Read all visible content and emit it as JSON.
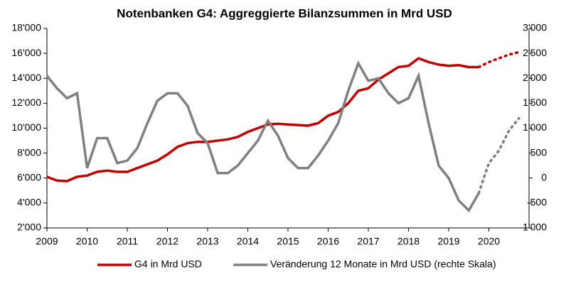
{
  "chart_data": {
    "type": "line",
    "title": "Notenbanken G4: Aggreggierte Bilanzsummen in Mrd USD",
    "x": [
      2009,
      2009.25,
      2009.5,
      2009.75,
      2010,
      2010.25,
      2010.5,
      2010.75,
      2011,
      2011.25,
      2011.5,
      2011.75,
      2012,
      2012.25,
      2012.5,
      2012.75,
      2013,
      2013.25,
      2013.5,
      2013.75,
      2014,
      2014.25,
      2014.5,
      2014.75,
      2015,
      2015.25,
      2015.5,
      2015.75,
      2016,
      2016.25,
      2016.5,
      2016.75,
      2017,
      2017.25,
      2017.5,
      2017.75,
      2018,
      2018.25,
      2018.5,
      2018.75,
      2019,
      2019.25,
      2019.5,
      2019.75,
      2020,
      2020.25,
      2020.5,
      2020.75
    ],
    "projection_from": 2019.75,
    "series": [
      {
        "name": "G4 in Mrd USD",
        "color": "#c00000",
        "axis": "y",
        "values": [
          6100,
          5800,
          5750,
          6100,
          6200,
          6500,
          6600,
          6500,
          6500,
          6800,
          7100,
          7400,
          7900,
          8500,
          8800,
          8900,
          8900,
          9000,
          9100,
          9300,
          9700,
          10000,
          10300,
          10350,
          10300,
          10250,
          10200,
          10400,
          11000,
          11300,
          12000,
          13000,
          13200,
          13900,
          14400,
          14900,
          15000,
          15600,
          15300,
          15100,
          15000,
          15050,
          14900,
          14900,
          15300,
          15600,
          15900,
          16100
        ]
      },
      {
        "name": "Veränderung 12 Monate in Mrd USD (rechte Skala)",
        "color": "#808080",
        "axis": "y2",
        "values": [
          2050,
          1800,
          1600,
          1700,
          200,
          800,
          800,
          300,
          350,
          600,
          1100,
          1550,
          1700,
          1700,
          1450,
          900,
          700,
          100,
          100,
          250,
          500,
          750,
          1150,
          850,
          400,
          200,
          200,
          450,
          750,
          1100,
          1750,
          2300,
          1950,
          2000,
          1700,
          1500,
          1600,
          2050,
          1100,
          250,
          0,
          -450,
          -650,
          -300,
          300,
          550,
          950,
          1200
        ]
      }
    ],
    "xlim": [
      2009,
      2021
    ],
    "xticks": [
      2009,
      2010,
      2011,
      2012,
      2013,
      2014,
      2015,
      2016,
      2017,
      2018,
      2019,
      2020
    ],
    "ylim": [
      2000,
      18000
    ],
    "yticks": [
      {
        "value": 2000,
        "label": "2'000"
      },
      {
        "value": 4000,
        "label": "4'000"
      },
      {
        "value": 6000,
        "label": "6'000"
      },
      {
        "value": 8000,
        "label": "8'000"
      },
      {
        "value": 10000,
        "label": "10'000"
      },
      {
        "value": 12000,
        "label": "12'000"
      },
      {
        "value": 14000,
        "label": "14'000"
      },
      {
        "value": 16000,
        "label": "16'000"
      },
      {
        "value": 18000,
        "label": "18'000"
      }
    ],
    "y2lim": [
      -1000,
      3000
    ],
    "y2ticks": [
      {
        "value": -1000,
        "label": "-1'000"
      },
      -500,
      0,
      500,
      {
        "value": 1000,
        "label": "1'000"
      },
      {
        "value": 1500,
        "label": "1'500"
      },
      {
        "value": 2000,
        "label": "2'000"
      },
      {
        "value": 2500,
        "label": "2'500"
      },
      {
        "value": 3000,
        "label": "3'000"
      }
    ],
    "grid": false
  }
}
